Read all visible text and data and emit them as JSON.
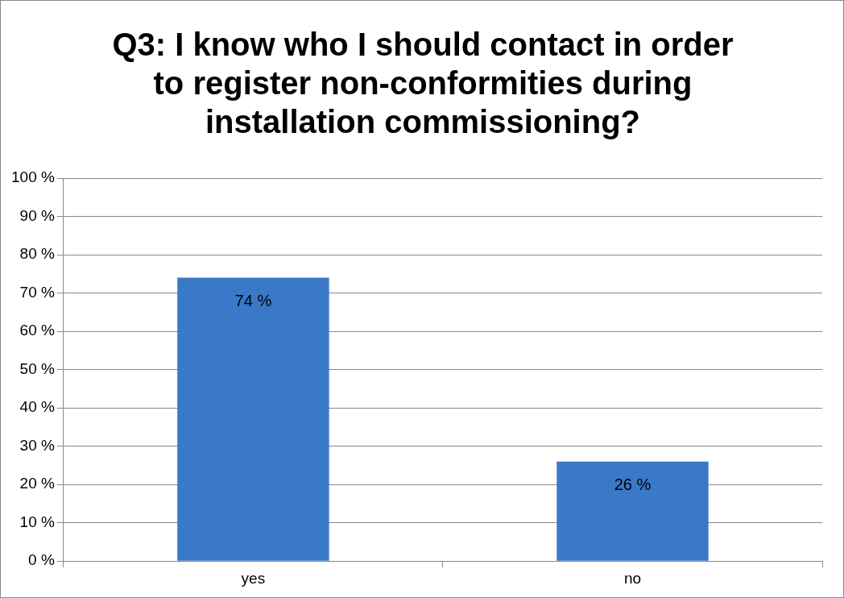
{
  "chart_data": {
    "type": "bar",
    "title": "Q3: I know who I should contact in order to register non-conformities during installation commissioning?",
    "categories": [
      "yes",
      "no"
    ],
    "values": [
      74,
      26
    ],
    "value_labels": [
      "74 %",
      "26 %"
    ],
    "color": "#3a78c8",
    "ylim": [
      0,
      100
    ],
    "yticks": [
      {
        "value": 0,
        "label": "0 %"
      },
      {
        "value": 10,
        "label": "10 %"
      },
      {
        "value": 20,
        "label": "20 %"
      },
      {
        "value": 30,
        "label": "30 %"
      },
      {
        "value": 40,
        "label": "40 %"
      },
      {
        "value": 50,
        "label": "50 %"
      },
      {
        "value": 60,
        "label": "60 %"
      },
      {
        "value": 70,
        "label": "70 %"
      },
      {
        "value": 80,
        "label": "80 %"
      },
      {
        "value": 90,
        "label": "90 %"
      },
      {
        "value": 100,
        "label": "100 %"
      }
    ],
    "grid": "y",
    "legend": false
  }
}
